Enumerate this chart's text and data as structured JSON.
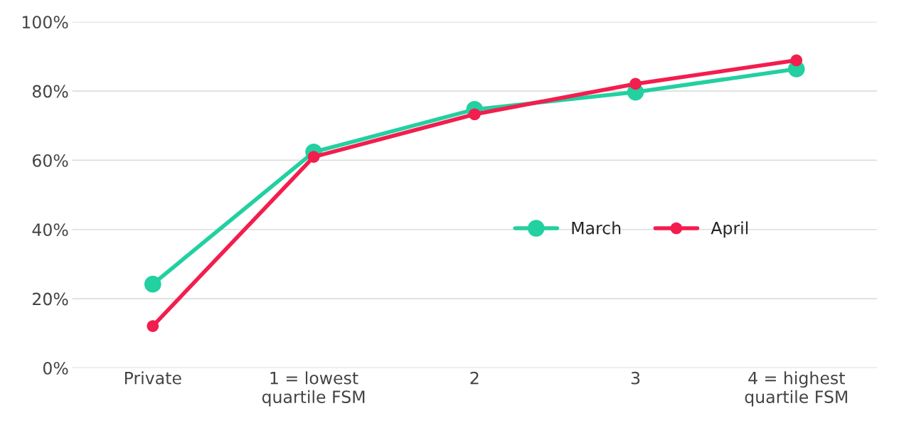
{
  "chart_data": {
    "type": "line",
    "categories": [
      "Private",
      "1 = lowest\nquartile FSM",
      "2",
      "3",
      "4 = highest\nquartile FSM"
    ],
    "series": [
      {
        "name": "March",
        "color": "#22d0a0",
        "values": [
          24.2,
          62.4,
          74.7,
          79.7,
          86.4
        ]
      },
      {
        "name": "April",
        "color": "#f21e4e",
        "values": [
          12.1,
          61.0,
          73.3,
          82.1,
          88.9
        ]
      }
    ],
    "ylim": [
      0,
      100
    ],
    "yticks": [
      {
        "value": 0,
        "label": "0%"
      },
      {
        "value": 20,
        "label": "20%"
      },
      {
        "value": 40,
        "label": "40%"
      },
      {
        "value": 60,
        "label": "60%"
      },
      {
        "value": 80,
        "label": "80%"
      },
      {
        "value": 100,
        "label": "100%"
      }
    ],
    "grid": "y",
    "legend": "right",
    "marker": "circle",
    "line_style": "solid"
  }
}
